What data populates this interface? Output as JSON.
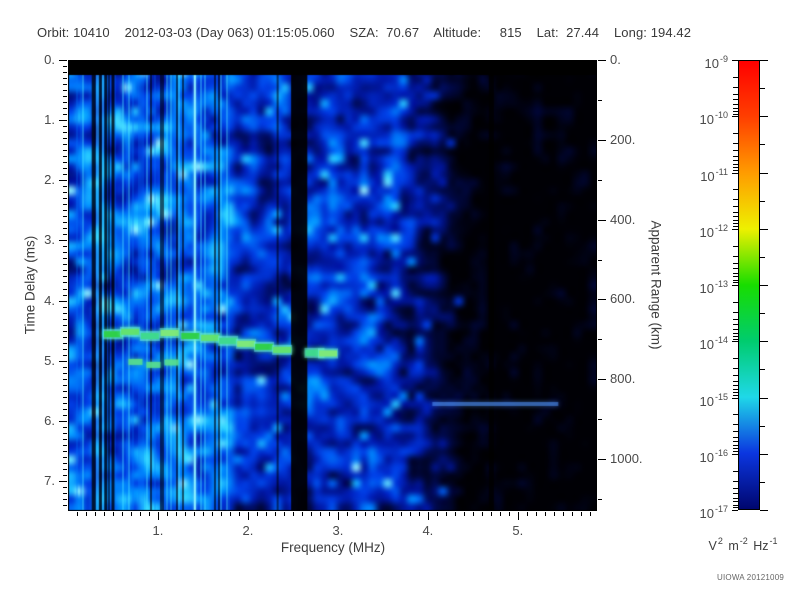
{
  "header": {
    "info_line": "Orbit: 10410    2012-03-03 (Day 063) 01:15:05.060    SZA:  70.67    Altitude:     815    Lat:  27.44    Long: 194.42"
  },
  "footer": {
    "credit": "UIOWA 20121009"
  },
  "chart_data": {
    "type": "heatmap",
    "title": "",
    "xlabel": "Frequency (MHz)",
    "ylabel": "Time Delay (ms)",
    "y2label": "Apparent Range (km)",
    "xlim": [
      0,
      5.88
    ],
    "ylim": [
      0,
      7.5
    ],
    "y2lim": [
      0,
      1130
    ],
    "xticks": [
      1,
      2,
      3,
      4,
      5
    ],
    "xtick_labels": [
      "1.",
      "2.",
      "3.",
      "4.",
      "5."
    ],
    "yticks": [
      0,
      1,
      2,
      3,
      4,
      5,
      6,
      7
    ],
    "ytick_labels": [
      "0.",
      "1.",
      "2.",
      "3.",
      "4.",
      "5.",
      "6.",
      "7."
    ],
    "y2ticks": [
      0,
      200,
      400,
      600,
      800,
      1000
    ],
    "y2tick_labels": [
      "0.",
      "200.",
      "400.",
      "600.",
      "800.",
      "1000."
    ],
    "x_minor_step": 0.1,
    "y_minor_step": 0.1,
    "y2_minor_step": 100,
    "grid": false,
    "colorbar": {
      "scale": "log",
      "top_value": "1e-9",
      "bottom_value": "1e-17",
      "decades": [
        "-9",
        "-10",
        "-11",
        "-12",
        "-13",
        "-14",
        "-15",
        "-16",
        "-17"
      ],
      "colors": [
        "#ff0000",
        "#ff3f00",
        "#ff9c00",
        "#eef000",
        "#18dd00",
        "#00cc6e",
        "#1fd8e8",
        "#0b36e0",
        "#00066e"
      ],
      "unit_parts": [
        {
          "t": "V"
        },
        {
          "s": "2"
        },
        {
          "t": " m"
        },
        {
          "s": "-2"
        },
        {
          "t": " Hz"
        },
        {
          "s": "-1"
        }
      ]
    },
    "background_colors": {
      "noise_floor": "#000005",
      "weak_signal": "#0018a8",
      "medium_signal": "#0090ff",
      "strong_signal": "#2fd2ff",
      "echo_trace": "#4fdc6a"
    },
    "features": {
      "top_noise_bar_delay_range_ms": [
        0,
        0.25
      ],
      "echo_trace_points_mhz_ms": [
        [
          0.5,
          4.56
        ],
        [
          0.69,
          4.52
        ],
        [
          0.91,
          4.59
        ],
        [
          1.13,
          4.54
        ],
        [
          1.36,
          4.59
        ],
        [
          1.58,
          4.62
        ],
        [
          1.78,
          4.67
        ],
        [
          1.98,
          4.72
        ],
        [
          2.18,
          4.77
        ],
        [
          2.38,
          4.82
        ],
        [
          2.74,
          4.87
        ],
        [
          2.89,
          4.88
        ]
      ],
      "secondary_echo_points_mhz_ms": [
        [
          0.75,
          5.02
        ],
        [
          0.95,
          5.07
        ],
        [
          1.15,
          5.03
        ]
      ],
      "faint_horizontal_echo": {
        "freq_range_mhz": [
          4.05,
          5.45
        ],
        "delay_ms": 5.72
      },
      "bright_vertical_line_mhz": 1.41,
      "dark_vertical_band_mhz": [
        2.48,
        2.66
      ],
      "dark_vertical_lines_mhz": [
        0.28,
        0.36,
        0.42,
        0.5
      ],
      "striated_noise_freq_max_mhz": 1.8,
      "dark_sparse_region_freq_min_mhz": 4.7
    }
  }
}
